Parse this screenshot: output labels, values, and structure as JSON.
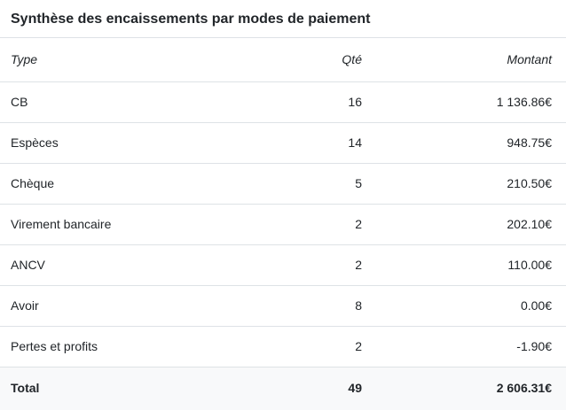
{
  "title": "Synthèse des encaissements par modes de paiement",
  "table": {
    "columns": [
      {
        "label": "Type",
        "align": "left"
      },
      {
        "label": "Qté",
        "align": "right"
      },
      {
        "label": "Montant",
        "align": "right"
      }
    ],
    "rows": [
      {
        "type": "CB",
        "qty": "16",
        "amount": "1 136.86€"
      },
      {
        "type": "Espèces",
        "qty": "14",
        "amount": "948.75€"
      },
      {
        "type": "Chèque",
        "qty": "5",
        "amount": "210.50€"
      },
      {
        "type": "Virement bancaire",
        "qty": "2",
        "amount": "202.10€"
      },
      {
        "type": "ANCV",
        "qty": "2",
        "amount": "110.00€"
      },
      {
        "type": "Avoir",
        "qty": "8",
        "amount": "0.00€"
      },
      {
        "type": "Pertes et profits",
        "qty": "2",
        "amount": "-1.90€"
      }
    ],
    "total": {
      "label": "Total",
      "qty": "49",
      "amount": "2 606.31€"
    }
  },
  "colors": {
    "text": "#212529",
    "border": "#dee2e6",
    "total_row_background": "#f8f9fa",
    "background": "#ffffff"
  }
}
